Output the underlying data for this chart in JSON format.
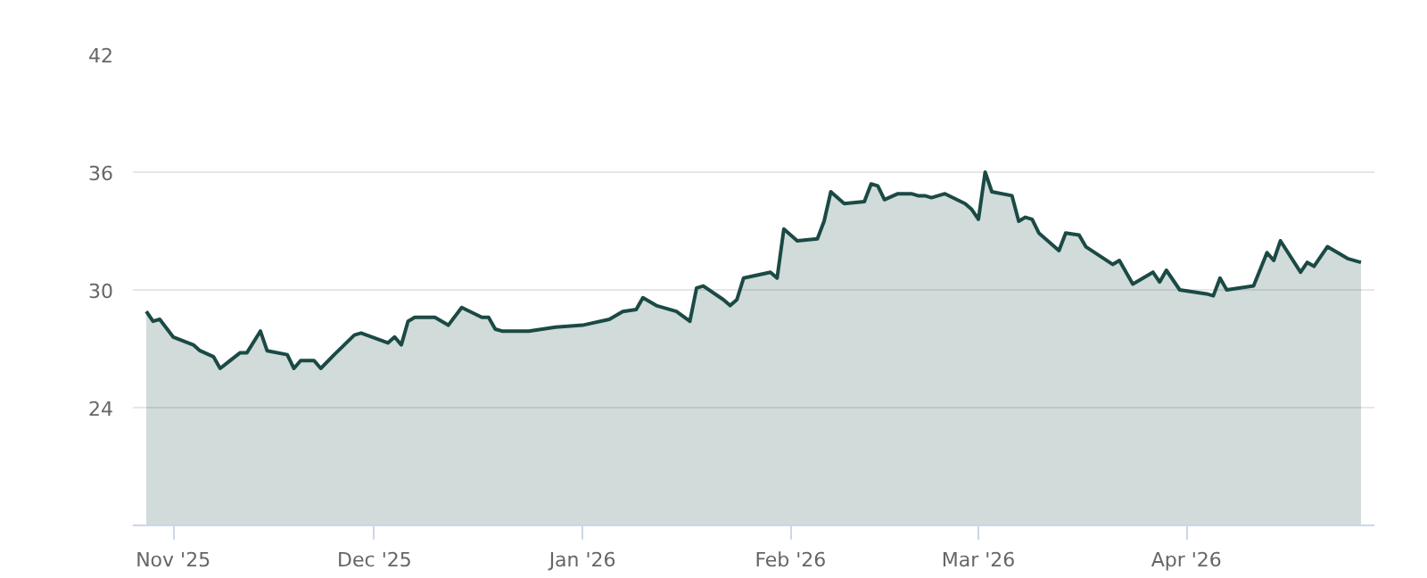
{
  "chart_data": {
    "type": "area",
    "xlim": [
      "2025-10-26",
      "2026-04-29"
    ],
    "ylim": [
      18,
      42
    ],
    "xticks": [
      {
        "value": "2025-11-01",
        "label": "Nov '25"
      },
      {
        "value": "2025-12-01",
        "label": "Dec '25"
      },
      {
        "value": "2026-01-01",
        "label": "Jan '26"
      },
      {
        "value": "2026-02-01",
        "label": "Feb '26"
      },
      {
        "value": "2026-03-01",
        "label": "Mar '26"
      },
      {
        "value": "2026-04-01",
        "label": "Apr '26"
      }
    ],
    "yticks": [
      24,
      30,
      36,
      42
    ],
    "grid": "y",
    "x": [
      "2025-10-28",
      "2025-10-29",
      "2025-10-30",
      "2025-11-01",
      "2025-11-04",
      "2025-11-05",
      "2025-11-07",
      "2025-11-08",
      "2025-11-11",
      "2025-11-12",
      "2025-11-14",
      "2025-11-15",
      "2025-11-18",
      "2025-11-19",
      "2025-11-20",
      "2025-11-22",
      "2025-11-23",
      "2025-11-25",
      "2025-11-28",
      "2025-11-29",
      "2025-12-03",
      "2025-12-04",
      "2025-12-05",
      "2025-12-06",
      "2025-12-07",
      "2025-12-10",
      "2025-12-12",
      "2025-12-14",
      "2025-12-17",
      "2025-12-18",
      "2025-12-19",
      "2025-12-20",
      "2025-12-22",
      "2025-12-24",
      "2025-12-26",
      "2025-12-28",
      "2026-01-01",
      "2026-01-05",
      "2026-01-07",
      "2026-01-09",
      "2026-01-10",
      "2026-01-12",
      "2026-01-15",
      "2026-01-17",
      "2026-01-18",
      "2026-01-19",
      "2026-01-22",
      "2026-01-23",
      "2026-01-24",
      "2026-01-25",
      "2026-01-29",
      "2026-01-30",
      "2026-01-31",
      "2026-02-02",
      "2026-02-05",
      "2026-02-06",
      "2026-02-07",
      "2026-02-09",
      "2026-02-12",
      "2026-02-13",
      "2026-02-14",
      "2026-02-15",
      "2026-02-17",
      "2026-02-19",
      "2026-02-20",
      "2026-02-21",
      "2026-02-22",
      "2026-02-24",
      "2026-02-27",
      "2026-02-28",
      "2026-03-01",
      "2026-03-02",
      "2026-03-03",
      "2026-03-06",
      "2026-03-07",
      "2026-03-08",
      "2026-03-09",
      "2026-03-10",
      "2026-03-13",
      "2026-03-14",
      "2026-03-16",
      "2026-03-17",
      "2026-03-21",
      "2026-03-22",
      "2026-03-24",
      "2026-03-27",
      "2026-03-28",
      "2026-03-29",
      "2026-03-31",
      "2026-04-04",
      "2026-04-05",
      "2026-04-06",
      "2026-04-07",
      "2026-04-11",
      "2026-04-13",
      "2026-04-14",
      "2026-04-15",
      "2026-04-18",
      "2026-04-19",
      "2026-04-20",
      "2026-04-22",
      "2026-04-25",
      "2026-04-27"
    ],
    "series": [
      {
        "color": "#1b4a45",
        "values": [
          28.9,
          28.4,
          28.5,
          27.6,
          27.2,
          26.9,
          26.6,
          26.0,
          26.8,
          26.8,
          27.9,
          26.9,
          26.7,
          26.0,
          26.4,
          26.4,
          26.0,
          26.7,
          27.7,
          27.8,
          27.3,
          27.6,
          27.2,
          28.4,
          28.6,
          28.6,
          28.2,
          29.1,
          28.6,
          28.6,
          28.0,
          27.9,
          27.9,
          27.9,
          28.0,
          28.1,
          28.2,
          28.5,
          28.9,
          29.0,
          29.6,
          29.2,
          28.9,
          28.4,
          30.1,
          30.2,
          29.5,
          29.2,
          29.5,
          30.6,
          30.9,
          30.6,
          33.1,
          32.5,
          32.6,
          33.5,
          35.0,
          34.4,
          34.5,
          35.4,
          35.3,
          34.6,
          34.9,
          34.9,
          34.8,
          34.8,
          34.7,
          34.9,
          34.4,
          34.1,
          33.6,
          36.0,
          35.0,
          34.8,
          33.5,
          33.7,
          33.6,
          32.9,
          32.0,
          32.9,
          32.8,
          32.2,
          31.3,
          31.5,
          30.3,
          30.9,
          30.4,
          31.0,
          30.0,
          29.8,
          29.7,
          30.6,
          30.0,
          30.2,
          31.9,
          31.5,
          32.5,
          30.9,
          31.4,
          31.2,
          32.2,
          31.6,
          31.4
        ]
      }
    ]
  }
}
